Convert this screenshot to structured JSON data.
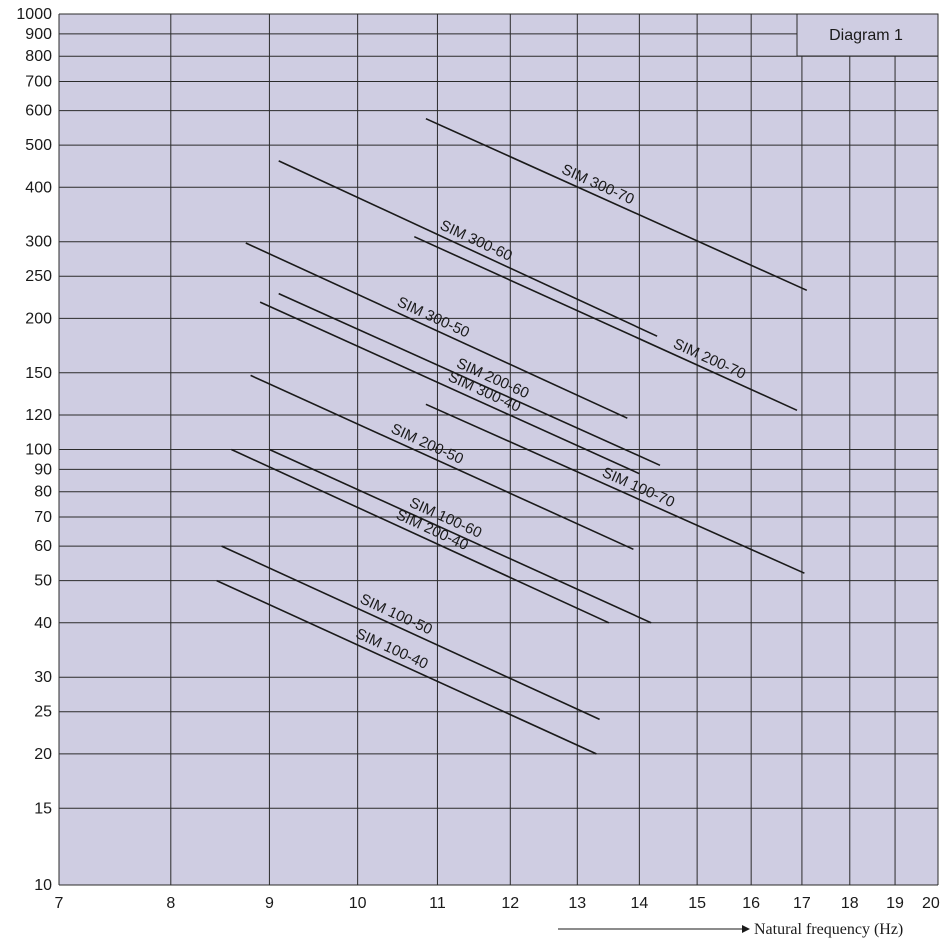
{
  "chart_data": {
    "type": "line",
    "title": "Diagram 1",
    "xlabel": "Natural frequency (Hz)",
    "ylabel": "",
    "x_scale": "log",
    "y_scale": "log",
    "xlim": [
      7,
      20
    ],
    "ylim": [
      10,
      1000
    ],
    "grid": true,
    "x_ticks": [
      7,
      8,
      9,
      10,
      11,
      12,
      13,
      14,
      15,
      16,
      17,
      18,
      19,
      20
    ],
    "y_ticks": [
      10,
      15,
      20,
      25,
      30,
      40,
      50,
      60,
      70,
      80,
      90,
      100,
      120,
      150,
      200,
      250,
      300,
      400,
      500,
      600,
      700,
      800,
      900,
      1000
    ],
    "series": [
      {
        "name": "SIM 300-70",
        "x": [
          10.85,
          17.1
        ],
        "y": [
          575,
          232
        ]
      },
      {
        "name": "SIM 300-60",
        "x": [
          9.1,
          14.3
        ],
        "y": [
          460,
          182
        ]
      },
      {
        "name": "SIM 200-70",
        "x": [
          10.7,
          16.9
        ],
        "y": [
          308,
          123
        ]
      },
      {
        "name": "SIM 300-50",
        "x": [
          8.75,
          13.8
        ],
        "y": [
          298,
          118
        ]
      },
      {
        "name": "SIM 200-60",
        "x": [
          9.1,
          14.35
        ],
        "y": [
          228,
          92
        ]
      },
      {
        "name": "SIM 300-40",
        "x": [
          8.9,
          14.0
        ],
        "y": [
          218,
          88
        ]
      },
      {
        "name": "SIM 200-50",
        "x": [
          8.8,
          13.9
        ],
        "y": [
          148,
          59
        ]
      },
      {
        "name": "SIM 100-70",
        "x": [
          10.85,
          17.05
        ],
        "y": [
          127,
          52
        ]
      },
      {
        "name": "SIM 100-60",
        "x": [
          9.0,
          14.2
        ],
        "y": [
          100,
          40
        ]
      },
      {
        "name": "SIM 200-40",
        "x": [
          8.6,
          13.5
        ],
        "y": [
          100,
          40
        ]
      },
      {
        "name": "SIM 100-50",
        "x": [
          8.5,
          13.35
        ],
        "y": [
          60,
          24
        ]
      },
      {
        "name": "SIM 100-40",
        "x": [
          8.45,
          13.3
        ],
        "y": [
          50,
          20
        ]
      }
    ]
  }
}
